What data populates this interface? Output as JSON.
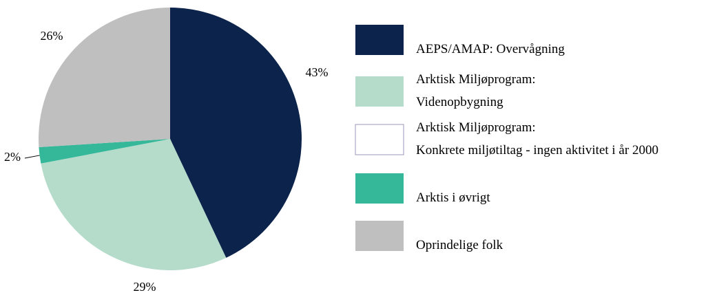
{
  "chart_data": {
    "type": "pie",
    "categories": [
      "AEPS/AMAP: Overvågning",
      "Arktisk Miljøprogram:\nVidenopbygning",
      "Arktisk Miljøprogram:\nKonkrete miljøtiltag - ingen aktivitet i år 2000",
      "Arktis i øvrigt",
      "Oprindelige folk"
    ],
    "values": [
      43,
      29,
      0,
      2,
      26
    ],
    "value_labels": [
      "43%",
      "29%",
      null,
      "2%",
      "26%"
    ],
    "colors": [
      "#0c234b",
      "#b5dccb",
      "#ffffff",
      "#35b899",
      "#bfbfbf"
    ]
  }
}
